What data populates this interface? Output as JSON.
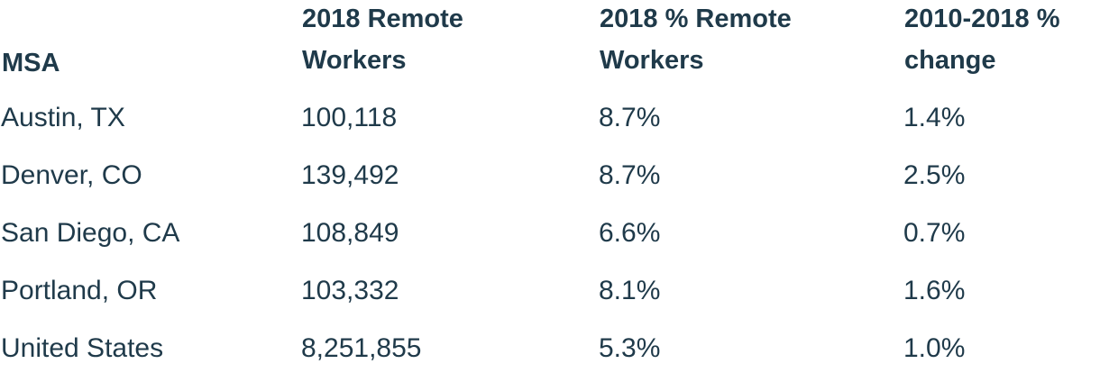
{
  "table": {
    "headers": [
      "MSA",
      "2018 Remote Workers",
      "2018 % Remote Workers",
      "2010-2018 % change"
    ],
    "rows": [
      [
        "Austin, TX",
        "100,118",
        "8.7%",
        "1.4%"
      ],
      [
        "Denver, CO",
        "139,492",
        "8.7%",
        "2.5%"
      ],
      [
        "San Diego, CA",
        "108,849",
        "6.6%",
        "0.7%"
      ],
      [
        "Portland, OR",
        "103,332",
        "8.1%",
        "1.6%"
      ],
      [
        "United States",
        "8,251,855",
        "5.3%",
        "1.0%"
      ]
    ]
  }
}
